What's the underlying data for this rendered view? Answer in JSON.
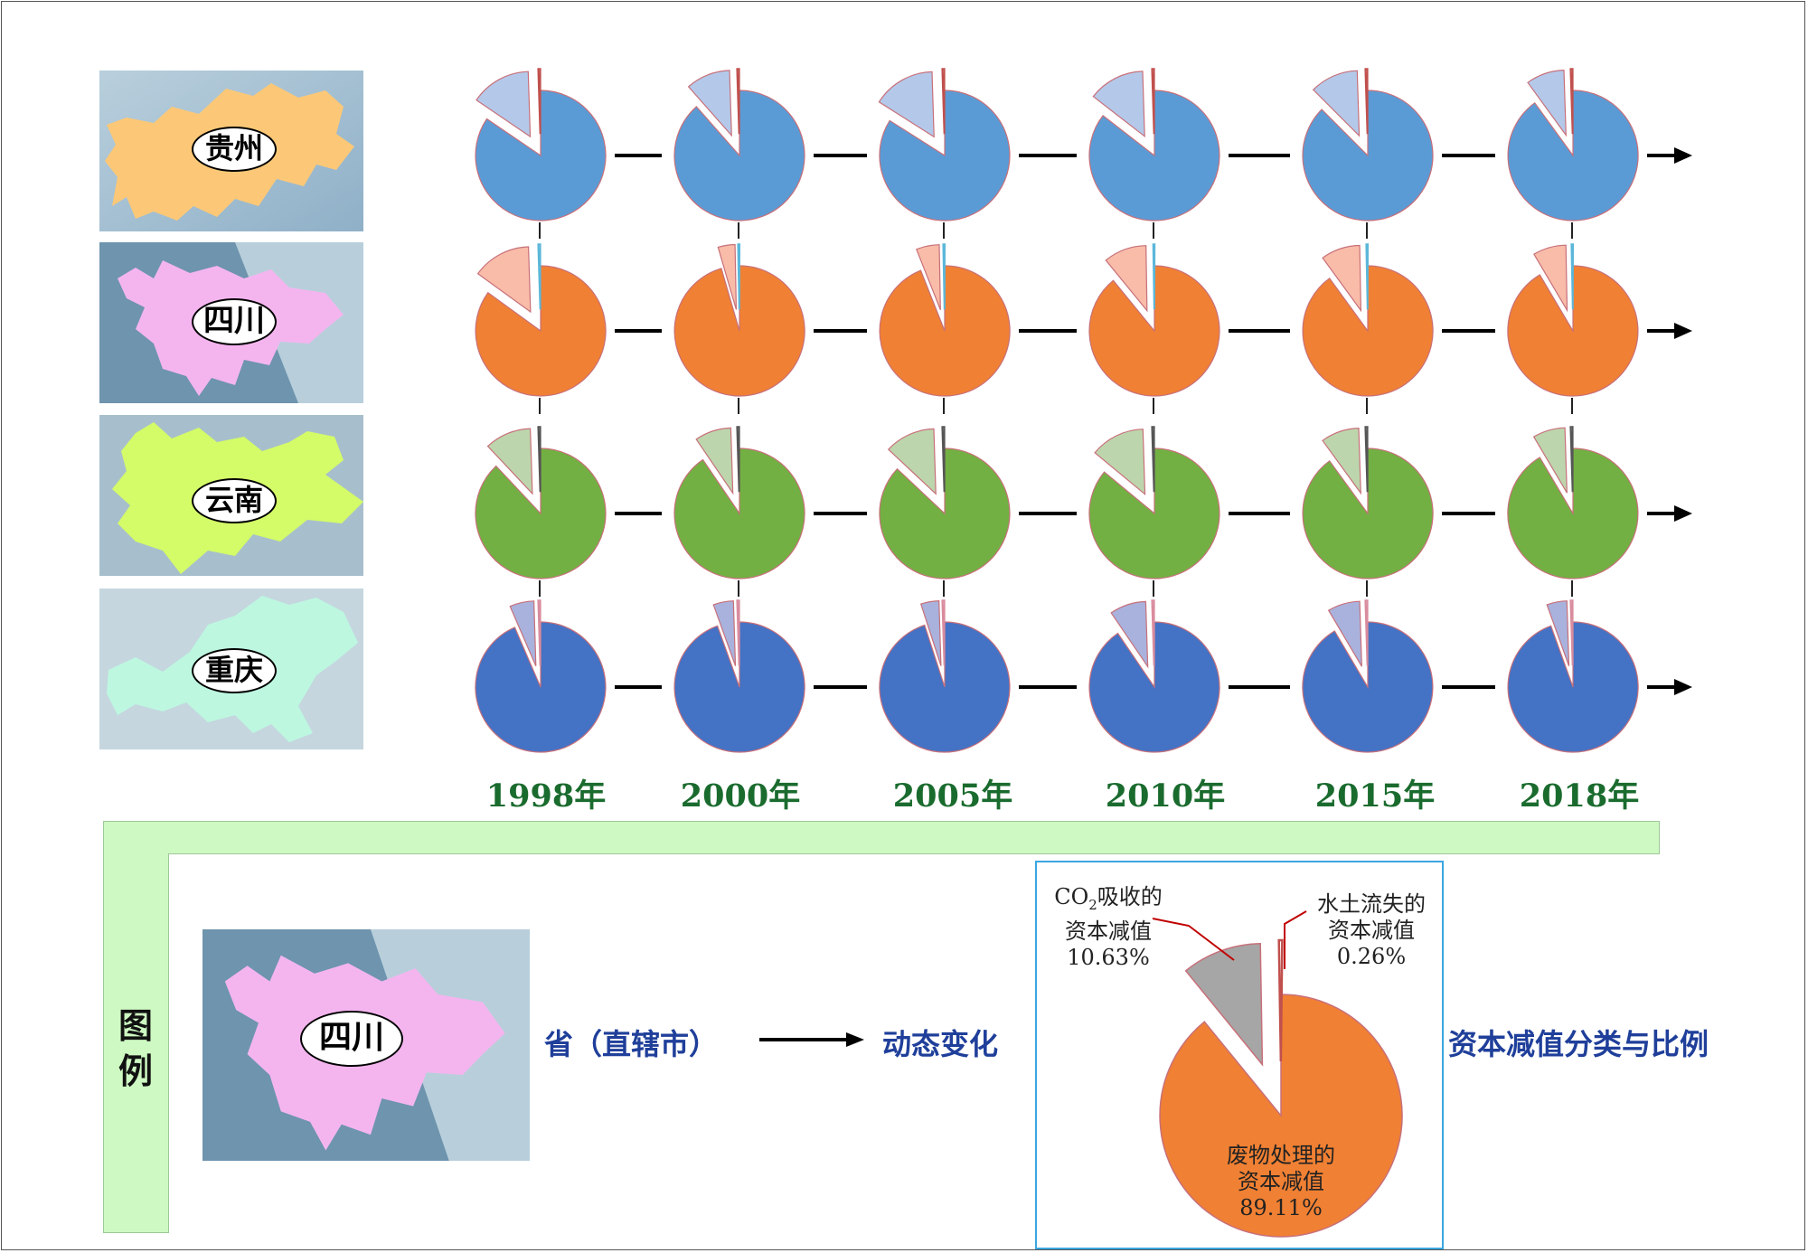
{
  "colors": {
    "guizhou": {
      "main": "#5b9bd5",
      "co2": "#b4c9e9",
      "soil": "#c0504d"
    },
    "sichuan": {
      "main": "#f08033",
      "co2": "#f8bca8",
      "soil": "#5bb7d9"
    },
    "yunnan": {
      "main": "#72b043",
      "co2": "#bdd5ad",
      "soil": "#555555"
    },
    "chongqing": {
      "main": "#4472c4",
      "co2": "#a9b2dc",
      "soil": "#d98c9e"
    },
    "legend": {
      "main": "#f08033",
      "co2": "#a6a6a6",
      "soil": "#c0504d"
    },
    "year_text": "#1a6b2e",
    "legend_text": "#1f3f9a",
    "legend_band": "#cef9c2"
  },
  "provinces": [
    {
      "name": "贵州",
      "key": "guizhou"
    },
    {
      "name": "四川",
      "key": "sichuan"
    },
    {
      "name": "云南",
      "key": "yunnan"
    },
    {
      "name": "重庆",
      "key": "chongqing"
    }
  ],
  "years": [
    "1998年",
    "2000年",
    "2005年",
    "2010年",
    "2015年",
    "2018年"
  ],
  "chart_data": {
    "type": "pie",
    "title": "资本减值分类与比例",
    "categories": [
      "废物处理的资本减值",
      "CO2吸收的资本减值",
      "水土流失的资本减值"
    ],
    "series": [
      {
        "name": "贵州",
        "years": [
          "1998年",
          "2000年",
          "2005年",
          "2010年",
          "2015年",
          "2018年"
        ],
        "values": [
          [
            84.5,
            15.0,
            0.5
          ],
          [
            88.5,
            11.0,
            0.5
          ],
          [
            84.0,
            15.5,
            0.5
          ],
          [
            85.5,
            14.0,
            0.5
          ],
          [
            87.5,
            12.0,
            0.5
          ],
          [
            90.0,
            9.5,
            0.5
          ]
        ]
      },
      {
        "name": "四川",
        "years": [
          "1998年",
          "2000年",
          "2005年",
          "2010年",
          "2015年",
          "2018年"
        ],
        "values": [
          [
            85.0,
            14.5,
            0.5
          ],
          [
            95.5,
            4.2,
            0.3
          ],
          [
            94.0,
            5.7,
            0.3
          ],
          [
            89.11,
            10.63,
            0.26
          ],
          [
            90.0,
            9.7,
            0.3
          ],
          [
            91.5,
            8.2,
            0.3
          ]
        ]
      },
      {
        "name": "云南",
        "years": [
          "1998年",
          "2000年",
          "2005年",
          "2010年",
          "2015年",
          "2018年"
        ],
        "values": [
          [
            88.0,
            11.5,
            0.5
          ],
          [
            90.5,
            9.0,
            0.5
          ],
          [
            87.0,
            12.5,
            0.5
          ],
          [
            86.0,
            13.5,
            0.5
          ],
          [
            90.0,
            9.5,
            0.5
          ],
          [
            91.5,
            8.0,
            0.5
          ]
        ]
      },
      {
        "name": "重庆",
        "years": [
          "1998年",
          "2000年",
          "2005年",
          "2010年",
          "2015年",
          "2018年"
        ],
        "values": [
          [
            93.5,
            6.0,
            0.5
          ],
          [
            94.5,
            5.0,
            0.5
          ],
          [
            95.0,
            4.5,
            0.5
          ],
          [
            90.5,
            9.0,
            0.5
          ],
          [
            91.5,
            8.0,
            0.5
          ],
          [
            94.5,
            5.0,
            0.5
          ]
        ]
      }
    ],
    "legend_example": {
      "province": "四川",
      "values": [
        89.11,
        10.63,
        0.26
      ]
    }
  },
  "legend": {
    "title_line1": "图",
    "title_line2": "例",
    "province_label": "四川",
    "province_text": "省（直辖市）",
    "dynamic_text": "动态变化",
    "classification_text": "资本减值分类与比例",
    "co2_label_line1a": "CO",
    "co2_label_sub": "2",
    "co2_label_line1b": "吸收的",
    "co2_label_line2": "资本减值",
    "co2_percent": "10.63%",
    "soil_label_line1": "水土流失的",
    "soil_label_line2": "资本减值",
    "soil_percent": "0.26%",
    "waste_label_line1": "废物处理的",
    "waste_label_line2": "资本减值",
    "waste_percent": "89.11%"
  }
}
